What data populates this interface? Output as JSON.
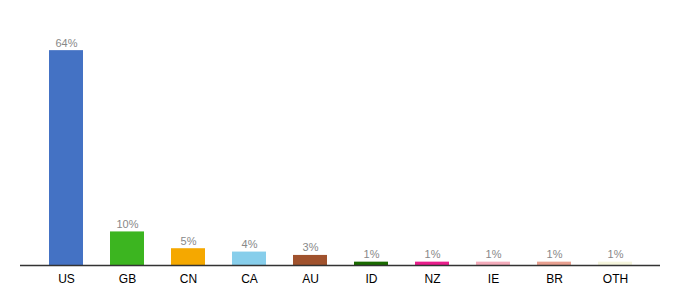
{
  "chart_data": {
    "type": "bar",
    "categories": [
      "US",
      "GB",
      "CN",
      "CA",
      "AU",
      "ID",
      "NZ",
      "IE",
      "BR",
      "OTH"
    ],
    "values": [
      64,
      10,
      5,
      4,
      3,
      1,
      1,
      1,
      1,
      1
    ],
    "value_labels": [
      "64%",
      "10%",
      "5%",
      "4%",
      "3%",
      "1%",
      "1%",
      "1%",
      "1%",
      "1%"
    ],
    "colors": [
      "#4472C4",
      "#3CB520",
      "#F5A800",
      "#87CEEB",
      "#A0522D",
      "#1A6B00",
      "#E91E8C",
      "#F4ACBB",
      "#E8A090",
      "#F5F5DC"
    ],
    "ylim": [
      0,
      70
    ],
    "data_labels": true,
    "tick_labels": "x",
    "grid": false
  }
}
